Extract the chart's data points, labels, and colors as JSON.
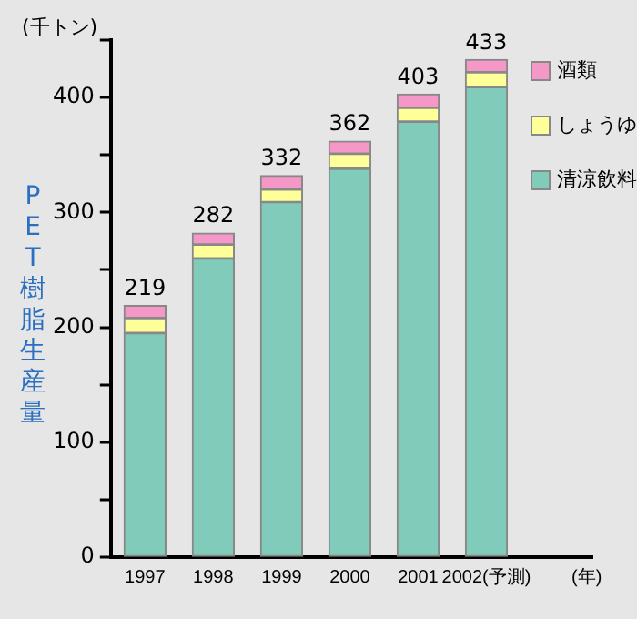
{
  "chart_data": {
    "type": "bar",
    "stacked": true,
    "ylabel": "PET樹脂生産量",
    "xlabel": "(年)",
    "annotations": [
      "(千トン)"
    ],
    "categories": [
      "1997",
      "1998",
      "1999",
      "2000",
      "2001",
      "2002(予測)"
    ],
    "series": [
      {
        "name": "清涼飲料",
        "color": "#80cbb9",
        "values": [
          195,
          260,
          309,
          338,
          379,
          409
        ]
      },
      {
        "name": "しょうゆ",
        "color": "#ffff99",
        "values": [
          13,
          12,
          11,
          13,
          12,
          13
        ]
      },
      {
        "name": "酒類",
        "color": "#f598c8",
        "values": [
          11,
          10,
          12,
          11,
          12,
          11
        ]
      }
    ],
    "totals": [
      "219",
      "282",
      "332",
      "362",
      "403",
      "433"
    ],
    "ylim": [
      0,
      450
    ],
    "yticks": [
      0,
      {
        "value": 50,
        "label": null
      },
      100,
      {
        "value": 150,
        "label": null
      },
      200,
      {
        "value": 250,
        "label": null
      },
      300,
      {
        "value": 350,
        "label": null
      },
      400,
      {
        "value": 450,
        "label": null
      }
    ],
    "grid": false,
    "legend": "top right"
  }
}
